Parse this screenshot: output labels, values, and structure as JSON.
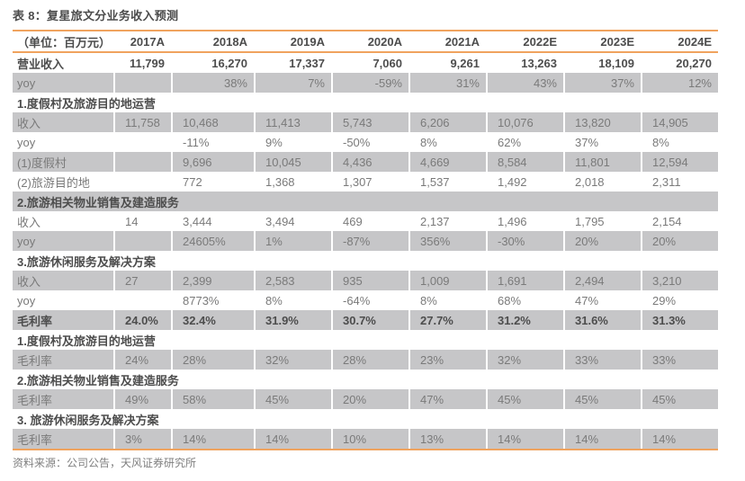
{
  "meta": {
    "title": "表 8：复星旅文分业务收入预测",
    "source": "资料来源：公司公告，天风证券研究所"
  },
  "colors": {
    "accent_orange_rule": "#f0a35e",
    "zebra_gray": "#c6c6c8",
    "text_bold": "#4d4d4d",
    "text_normal": "#7a7a7a"
  },
  "table": {
    "unit_label": "（单位：百万元）",
    "columns": [
      "2017A",
      "2018A",
      "2019A",
      "2020A",
      "2021A",
      "2022E",
      "2023E",
      "2024E"
    ],
    "rows": [
      {
        "label": "营业收入",
        "bold": true,
        "align": "right",
        "values": [
          "11,799",
          "16,270",
          "17,337",
          "7,060",
          "9,261",
          "13,263",
          "18,109",
          "20,270"
        ]
      },
      {
        "label": "yoy",
        "bold": false,
        "align": "right",
        "values": [
          "",
          "38%",
          "7%",
          "-59%",
          "31%",
          "43%",
          "37%",
          "12%"
        ]
      },
      {
        "label": "1.度假村及旅游目的地运营",
        "section": true
      },
      {
        "label": "收入",
        "bold": false,
        "align": "left",
        "values": [
          "11,758",
          "10,468",
          "11,413",
          "5,743",
          "6,206",
          "10,076",
          "13,820",
          "14,905"
        ]
      },
      {
        "label": "yoy",
        "bold": false,
        "align": "left",
        "values": [
          "",
          "-11%",
          "9%",
          "-50%",
          "8%",
          "62%",
          "37%",
          "8%"
        ]
      },
      {
        "label": "(1)度假村",
        "bold": false,
        "align": "left",
        "values": [
          "",
          "9,696",
          "10,045",
          "4,436",
          "4,669",
          "8,584",
          "11,801",
          "12,594"
        ]
      },
      {
        "label": "(2)旅游目的地",
        "bold": false,
        "align": "left",
        "values": [
          "",
          "772",
          "1,368",
          "1,307",
          "1,537",
          "1,492",
          "2,018",
          "2,311"
        ]
      },
      {
        "label": "2.旅游相关物业销售及建造服务",
        "section": true
      },
      {
        "label": "收入",
        "bold": false,
        "align": "left",
        "values": [
          "14",
          "3,444",
          "3,494",
          "469",
          "2,137",
          "1,496",
          "1,795",
          "2,154"
        ]
      },
      {
        "label": "yoy",
        "bold": false,
        "align": "left",
        "values": [
          "",
          "24605%",
          "1%",
          "-87%",
          "356%",
          "-30%",
          "20%",
          "20%"
        ]
      },
      {
        "label": "3.旅游休闲服务及解决方案",
        "section": true
      },
      {
        "label": "收入",
        "bold": false,
        "align": "left",
        "values": [
          "27",
          "2,399",
          "2,583",
          "935",
          "1,009",
          "1,691",
          "2,494",
          "3,210"
        ]
      },
      {
        "label": "yoy",
        "bold": false,
        "align": "left",
        "values": [
          "",
          "8773%",
          "8%",
          "-64%",
          "8%",
          "68%",
          "47%",
          "29%"
        ]
      },
      {
        "label": "毛利率",
        "bold": true,
        "align": "left",
        "values": [
          "24.0%",
          "32.4%",
          "31.9%",
          "30.7%",
          "27.7%",
          "31.2%",
          "31.6%",
          "31.3%"
        ]
      },
      {
        "label": "1.度假村及旅游目的地运营",
        "section": true
      },
      {
        "label": "毛利率",
        "bold": false,
        "align": "left",
        "values": [
          "24%",
          "28%",
          "32%",
          "28%",
          "23%",
          "32%",
          "33%",
          "33%"
        ]
      },
      {
        "label": "2.旅游相关物业销售及建造服务",
        "section": true
      },
      {
        "label": "毛利率",
        "bold": false,
        "align": "left",
        "values": [
          "49%",
          "58%",
          "45%",
          "20%",
          "47%",
          "45%",
          "45%",
          "45%"
        ]
      },
      {
        "label": "3. 旅游休闲服务及解决方案",
        "section": true
      },
      {
        "label": "毛利率",
        "bold": false,
        "align": "left",
        "values": [
          "3%",
          "14%",
          "14%",
          "10%",
          "13%",
          "14%",
          "14%",
          "14%"
        ]
      }
    ]
  }
}
